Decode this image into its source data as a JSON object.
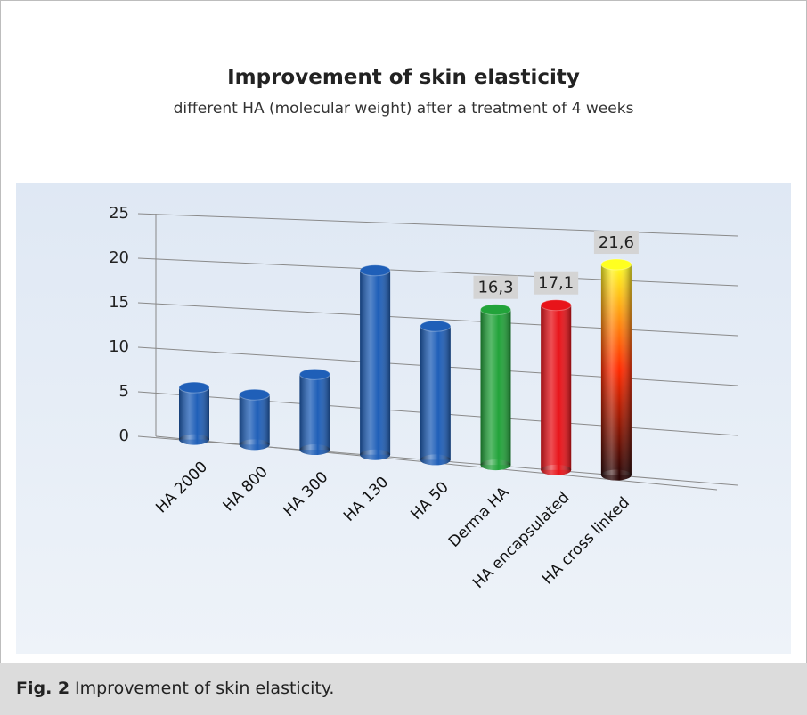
{
  "chart_data": {
    "type": "bar3d",
    "title": "Improvement of skin elasticity",
    "subtitle": "different HA (molecular weight) after a treatment of 4 weeks",
    "categories": [
      "HA 2000",
      "HA 800",
      "HA 300",
      "HA 130",
      "HA 50",
      "Derma HA",
      "HA encapsulated",
      "HA cross linked"
    ],
    "values": [
      5.8,
      5.5,
      8.2,
      19.8,
      14.2,
      16.3,
      17.1,
      21.6
    ],
    "value_labels": [
      null,
      null,
      null,
      null,
      null,
      "16,3",
      "17,1",
      "21,6"
    ],
    "colors": [
      "#1f5fb8",
      "#1f5fb8",
      "#1f5fb8",
      "#1f5fb8",
      "#1f5fb8",
      "#22a33a",
      "#e8141a",
      [
        "#ffff20",
        "#ff2a00",
        "#2a0505"
      ]
    ],
    "ylim": [
      0,
      25
    ],
    "yticks": [
      0,
      5,
      10,
      15,
      20,
      25
    ],
    "grid": true
  },
  "caption": {
    "label": "Fig. 2",
    "text": "Improvement of skin elasticity."
  }
}
